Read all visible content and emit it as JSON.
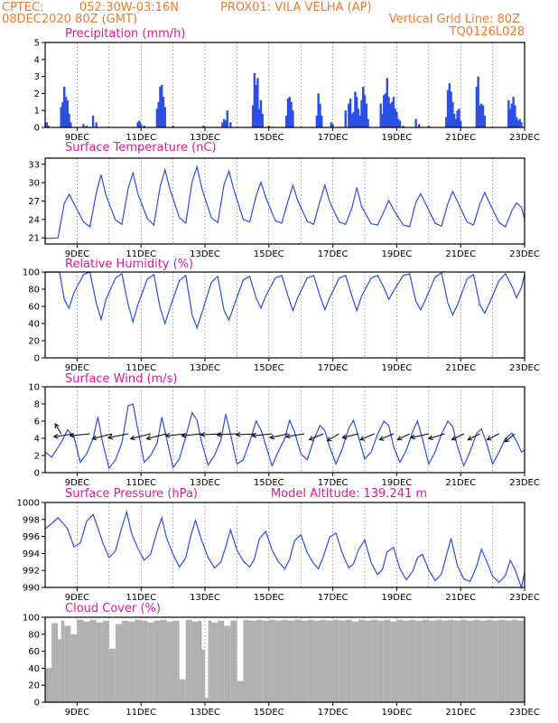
{
  "header": {
    "source": "CPTEC:",
    "coords": "052:30W-03:16N",
    "point": "PROX01: VILA VELHA (AP)",
    "run": "08DEC2020 80Z (GMT)",
    "grid_note": "Vertical Grid Line: 80Z",
    "model": "TQ0126L028"
  },
  "x_tick_labels": [
    "9DEC",
    "11DEC",
    "13DEC",
    "15DEC",
    "17DEC",
    "19DEC",
    "21DEC",
    "23DEC"
  ],
  "colors": {
    "series": "#2a4ee6",
    "cloud": "#b0b0b0",
    "title": "#e0189a",
    "header": "#f07a2a"
  },
  "chart_data": [
    {
      "type": "bar",
      "title": "Precipitation (mm/h)",
      "y_ticks": [
        "0",
        "1",
        "2",
        "3",
        "4",
        "5"
      ],
      "ylim": [
        0,
        5
      ],
      "x_range_days": [
        8.0,
        23.0
      ],
      "x": [
        8.05,
        8.1,
        8.5,
        8.55,
        8.6,
        8.65,
        8.7,
        8.75,
        8.8,
        9.2,
        9.3,
        9.5,
        9.6,
        10.9,
        10.95,
        11.0,
        11.1,
        11.5,
        11.55,
        11.6,
        11.65,
        11.7,
        11.75,
        12.0,
        12.95,
        13.55,
        13.6,
        13.65,
        13.7,
        13.8,
        14.5,
        14.55,
        14.6,
        14.65,
        14.7,
        14.75,
        14.8,
        15.0,
        15.55,
        15.6,
        15.65,
        15.7,
        15.75,
        16.5,
        16.55,
        16.6,
        16.65,
        16.95,
        17.0,
        17.4,
        17.5,
        17.55,
        17.6,
        17.65,
        17.7,
        17.75,
        17.8,
        17.85,
        17.9,
        17.95,
        18.0,
        18.05,
        18.1,
        18.5,
        18.55,
        18.6,
        18.65,
        18.7,
        18.75,
        18.8,
        18.85,
        18.9,
        18.95,
        19.0,
        19.05,
        19.1,
        19.2,
        19.6,
        19.7,
        20.0,
        20.55,
        20.6,
        20.65,
        20.7,
        20.75,
        20.8,
        20.85,
        20.9,
        20.95,
        21.0,
        21.5,
        21.55,
        21.6,
        21.65,
        21.7,
        21.75,
        22.5,
        22.55,
        22.6,
        22.65,
        22.7,
        22.75,
        22.8,
        22.85,
        22.9
      ],
      "values": [
        0.3,
        0.1,
        1.2,
        1.5,
        2.4,
        1.8,
        1.6,
        0.8,
        0.3,
        0.2,
        0.1,
        0.7,
        0.3,
        0.3,
        0.4,
        0.2,
        0.1,
        1.1,
        1.5,
        2.4,
        2.5,
        1.8,
        1.2,
        0.1,
        0.1,
        0.3,
        0.5,
        0.4,
        1.0,
        0.3,
        1.3,
        3.2,
        2.5,
        2.9,
        1.1,
        1.6,
        0.8,
        0.1,
        0.7,
        1.7,
        1.8,
        1.5,
        1.0,
        0.7,
        2.0,
        1.4,
        0.7,
        0.3,
        0.2,
        1.0,
        1.4,
        1.7,
        0.8,
        0.9,
        2.1,
        1.8,
        1.1,
        0.7,
        1.6,
        2.4,
        1.9,
        1.4,
        0.5,
        1.4,
        0.8,
        1.9,
        2.0,
        2.9,
        1.8,
        1.4,
        1.5,
        1.8,
        1.1,
        0.9,
        0.5,
        0.4,
        0.1,
        0.5,
        0.2,
        0.1,
        0.6,
        2.2,
        2.6,
        2.1,
        1.5,
        0.8,
        0.5,
        1.0,
        1.1,
        0.4,
        2.4,
        3.0,
        1.3,
        1.4,
        1.3,
        0.7,
        1.6,
        1.1,
        1.4,
        1.8,
        1.3,
        0.6,
        0.4,
        0.5,
        0.3
      ]
    },
    {
      "type": "line",
      "title": "Surface Temperature (nC)",
      "y_ticks": [
        "21",
        "24",
        "27",
        "30",
        "33"
      ],
      "ylim": [
        20,
        34
      ],
      "x_range_days": [
        8.0,
        23.0
      ],
      "x": [
        8.0,
        8.4,
        8.6,
        8.75,
        8.9,
        9.2,
        9.4,
        9.6,
        9.75,
        9.9,
        10.2,
        10.4,
        10.6,
        10.75,
        10.9,
        11.2,
        11.4,
        11.6,
        11.75,
        11.9,
        12.2,
        12.4,
        12.6,
        12.75,
        12.9,
        13.2,
        13.4,
        13.6,
        13.75,
        13.9,
        14.2,
        14.4,
        14.6,
        14.75,
        14.9,
        15.2,
        15.4,
        15.6,
        15.75,
        15.9,
        16.2,
        16.4,
        16.6,
        16.75,
        16.9,
        17.2,
        17.4,
        17.6,
        17.75,
        17.9,
        18.2,
        18.4,
        18.6,
        18.75,
        18.9,
        19.2,
        19.4,
        19.6,
        19.75,
        19.9,
        20.2,
        20.4,
        20.6,
        20.75,
        20.9,
        21.2,
        21.4,
        21.6,
        21.75,
        21.9,
        22.2,
        22.4,
        22.6,
        22.75,
        22.9,
        23.0
      ],
      "values": [
        20.9,
        21.0,
        26.6,
        28.1,
        26.6,
        23.6,
        22.8,
        28.3,
        31.3,
        28.0,
        23.9,
        23.2,
        29.1,
        31.6,
        28.2,
        24.1,
        23.1,
        29.4,
        32.1,
        29.0,
        24.3,
        23.4,
        30.2,
        32.6,
        29.1,
        24.3,
        23.5,
        29.7,
        31.9,
        28.9,
        24.0,
        23.6,
        27.8,
        30.1,
        27.6,
        23.8,
        23.4,
        27.0,
        29.6,
        27.1,
        23.7,
        23.2,
        27.0,
        29.6,
        26.9,
        23.6,
        23.2,
        25.9,
        29.2,
        26.1,
        23.3,
        23.1,
        25.3,
        27.1,
        25.6,
        23.1,
        22.8,
        26.8,
        28.2,
        26.6,
        23.4,
        22.9,
        26.6,
        28.6,
        26.9,
        23.6,
        23.1,
        26.5,
        28.4,
        26.7,
        23.5,
        22.8,
        25.4,
        26.7,
        26.0,
        24.1
      ]
    },
    {
      "type": "line",
      "title": "Relative Humidity (%)",
      "y_ticks": [
        "0",
        "20",
        "40",
        "60",
        "80",
        "100"
      ],
      "ylim": [
        0,
        100
      ],
      "x_range_days": [
        8.0,
        23.0
      ],
      "x": [
        8.0,
        8.45,
        8.6,
        8.75,
        8.9,
        9.2,
        9.4,
        9.6,
        9.75,
        9.9,
        10.2,
        10.4,
        10.6,
        10.75,
        10.9,
        11.2,
        11.4,
        11.6,
        11.75,
        11.9,
        12.2,
        12.4,
        12.6,
        12.75,
        12.9,
        13.2,
        13.4,
        13.6,
        13.75,
        13.9,
        14.2,
        14.4,
        14.6,
        14.75,
        14.9,
        15.2,
        15.4,
        15.6,
        15.75,
        15.9,
        16.2,
        16.4,
        16.6,
        16.75,
        16.9,
        17.2,
        17.4,
        17.6,
        17.75,
        17.9,
        18.2,
        18.4,
        18.6,
        18.75,
        18.9,
        19.2,
        19.4,
        19.6,
        19.75,
        19.9,
        20.2,
        20.4,
        20.6,
        20.75,
        20.9,
        21.2,
        21.4,
        21.6,
        21.75,
        21.9,
        22.2,
        22.4,
        22.6,
        22.75,
        22.9,
        23.0
      ],
      "values": [
        100,
        100,
        68,
        58,
        76,
        97,
        100,
        64,
        45,
        68,
        93,
        98,
        62,
        42,
        62,
        92,
        97,
        58,
        40,
        58,
        90,
        96,
        50,
        35,
        52,
        88,
        95,
        55,
        44,
        60,
        91,
        95,
        70,
        58,
        72,
        93,
        96,
        72,
        55,
        70,
        93,
        96,
        72,
        56,
        70,
        93,
        96,
        72,
        55,
        72,
        93,
        96,
        82,
        68,
        78,
        96,
        98,
        66,
        56,
        68,
        94,
        99,
        64,
        50,
        62,
        92,
        97,
        62,
        52,
        64,
        90,
        98,
        84,
        70,
        82,
        97
      ]
    },
    {
      "type": "line",
      "title": "Surface Wind (m/s)",
      "y_ticks": [
        "0",
        "2",
        "4",
        "6",
        "8",
        "10"
      ],
      "ylim": [
        0,
        10
      ],
      "x_range_days": [
        8.0,
        23.0
      ],
      "x": [
        8.0,
        8.2,
        8.5,
        8.7,
        8.9,
        9.1,
        9.3,
        9.5,
        9.65,
        9.8,
        10.0,
        10.2,
        10.4,
        10.6,
        10.75,
        10.9,
        11.1,
        11.3,
        11.5,
        11.65,
        11.8,
        12.0,
        12.2,
        12.4,
        12.6,
        12.75,
        12.9,
        13.1,
        13.3,
        13.5,
        13.65,
        13.8,
        14.0,
        14.2,
        14.4,
        14.6,
        14.75,
        14.9,
        15.1,
        15.3,
        15.5,
        15.65,
        15.8,
        16.0,
        16.2,
        16.4,
        16.6,
        16.75,
        16.9,
        17.1,
        17.3,
        17.5,
        17.65,
        17.8,
        18.0,
        18.2,
        18.4,
        18.6,
        18.75,
        18.9,
        19.1,
        19.3,
        19.5,
        19.65,
        19.8,
        20.0,
        20.2,
        20.4,
        20.6,
        20.75,
        20.9,
        21.1,
        21.3,
        21.5,
        21.65,
        21.8,
        22.0,
        22.2,
        22.4,
        22.6,
        22.75,
        22.9,
        23.0
      ],
      "values": [
        2.4,
        1.8,
        3.5,
        5.0,
        4.2,
        1.2,
        2.2,
        4.0,
        6.5,
        3.5,
        0.5,
        1.5,
        3.5,
        7.8,
        8.0,
        5.0,
        1.2,
        2.0,
        3.4,
        6.5,
        4.0,
        0.6,
        1.6,
        4.2,
        7.0,
        6.1,
        3.5,
        0.9,
        2.0,
        3.8,
        6.8,
        4.5,
        1.0,
        1.5,
        3.6,
        6.0,
        5.0,
        3.2,
        0.8,
        2.5,
        4.0,
        6.1,
        4.8,
        2.2,
        1.5,
        3.8,
        5.5,
        4.9,
        3.0,
        1.0,
        2.8,
        5.2,
        6.1,
        4.2,
        1.6,
        2.4,
        4.5,
        6.0,
        5.5,
        3.0,
        1.2,
        2.6,
        4.8,
        6.0,
        4.0,
        1.0,
        2.4,
        4.5,
        6.0,
        5.4,
        3.0,
        0.8,
        2.5,
        4.6,
        5.1,
        3.6,
        1.0,
        2.4,
        4.0,
        4.6,
        3.7,
        2.4,
        2.6
      ],
      "arrows_x": [
        8.5,
        8.9,
        9.4,
        10.1,
        10.6,
        11.3,
        11.8,
        12.4,
        12.9,
        13.5,
        14.0,
        14.6,
        15.1,
        15.6,
        16.1,
        16.7,
        17.2,
        17.8,
        18.3,
        18.9,
        19.4,
        20.0,
        20.5,
        21.1,
        21.6,
        22.2,
        22.7
      ],
      "arrows_u": [
        -0.3,
        -1.0,
        -1.0,
        -1.0,
        -1.0,
        -1.0,
        -1.0,
        -1.0,
        -1.0,
        -1.0,
        -1.0,
        -1.0,
        -1.0,
        -0.9,
        -0.9,
        -0.7,
        -0.6,
        -0.8,
        -0.7,
        -0.7,
        -0.6,
        -0.9,
        -0.8,
        -0.6,
        -0.6,
        -0.6,
        -0.5
      ],
      "arrows_v": [
        1.0,
        -0.3,
        -0.2,
        -0.5,
        -0.4,
        -0.5,
        -0.5,
        -0.2,
        -0.2,
        -0.1,
        -0.1,
        -0.1,
        -0.2,
        -0.4,
        -0.3,
        -0.6,
        -0.7,
        -0.4,
        -0.6,
        -0.6,
        -0.6,
        -0.4,
        -0.5,
        -0.6,
        -0.6,
        -0.6,
        -0.8
      ]
    },
    {
      "type": "line",
      "title": "Surface Pressure (hPa)",
      "annotation": "Model Altitude: 139.241 m",
      "y_ticks": [
        "990",
        "992",
        "994",
        "996",
        "998",
        "1000"
      ],
      "ylim": [
        990,
        1000
      ],
      "x_range_days": [
        8.0,
        23.0
      ],
      "x": [
        8.0,
        8.2,
        8.4,
        8.55,
        8.7,
        8.9,
        9.1,
        9.3,
        9.5,
        9.65,
        9.8,
        10.0,
        10.2,
        10.4,
        10.55,
        10.7,
        10.9,
        11.1,
        11.3,
        11.5,
        11.65,
        11.8,
        12.0,
        12.2,
        12.4,
        12.55,
        12.7,
        12.9,
        13.1,
        13.3,
        13.5,
        13.65,
        13.8,
        14.0,
        14.2,
        14.4,
        14.55,
        14.7,
        14.9,
        15.1,
        15.3,
        15.5,
        15.65,
        15.8,
        16.0,
        16.2,
        16.4,
        16.55,
        16.7,
        16.9,
        17.1,
        17.3,
        17.5,
        17.65,
        17.8,
        18.0,
        18.2,
        18.4,
        18.55,
        18.7,
        18.9,
        19.1,
        19.3,
        19.5,
        19.65,
        19.8,
        20.0,
        20.2,
        20.4,
        20.55,
        20.7,
        20.9,
        21.1,
        21.3,
        21.5,
        21.65,
        21.8,
        22.0,
        22.2,
        22.4,
        22.55,
        22.7,
        22.9,
        23.0
      ],
      "values": [
        996.9,
        997.5,
        998.2,
        997.6,
        996.9,
        994.8,
        995.2,
        997.8,
        998.6,
        997.0,
        995.3,
        993.5,
        994.3,
        997.1,
        998.9,
        996.4,
        994.6,
        993.2,
        993.9,
        996.6,
        998.2,
        995.8,
        993.9,
        992.4,
        993.5,
        996.0,
        997.9,
        995.5,
        993.5,
        992.3,
        993.0,
        994.8,
        996.8,
        994.4,
        993.1,
        992.4,
        993.4,
        995.7,
        996.6,
        994.4,
        993.0,
        992.2,
        993.3,
        995.5,
        996.2,
        994.1,
        992.8,
        992.2,
        993.6,
        995.9,
        996.4,
        994.0,
        992.3,
        992.8,
        994.4,
        995.6,
        992.9,
        991.5,
        992.1,
        994.2,
        994.7,
        992.2,
        990.9,
        991.9,
        993.5,
        993.9,
        992.1,
        990.8,
        991.6,
        993.7,
        995.8,
        992.5,
        991.0,
        990.7,
        992.5,
        994.5,
        993.2,
        991.3,
        990.6,
        991.4,
        993.2,
        992.1,
        990.0,
        991.8
      ]
    },
    {
      "type": "bar",
      "title": "Cloud Cover (%)",
      "y_ticks": [
        "0",
        "20",
        "40",
        "60",
        "80",
        "100"
      ],
      "ylim": [
        0,
        100
      ],
      "x_range_days": [
        8.0,
        23.0
      ],
      "x": [
        8.0,
        8.2,
        8.4,
        8.5,
        8.6,
        8.8,
        9.0,
        9.2,
        9.4,
        9.6,
        9.8,
        10.0,
        10.2,
        10.4,
        10.6,
        10.8,
        11.0,
        11.2,
        11.4,
        11.6,
        11.8,
        12.0,
        12.2,
        12.4,
        12.6,
        12.8,
        12.9,
        13.0,
        13.1,
        13.2,
        13.4,
        13.6,
        13.8,
        14.0,
        14.2,
        14.4,
        14.6,
        14.8,
        15.0,
        15.2,
        15.4,
        15.6,
        15.8,
        16.0,
        16.2,
        16.4,
        16.6,
        16.8,
        17.0,
        17.2,
        17.4,
        17.6,
        17.8,
        18.0,
        18.2,
        18.4,
        18.6,
        18.8,
        19.0,
        19.2,
        19.4,
        19.6,
        19.8,
        20.0,
        20.2,
        20.4,
        20.6,
        20.8,
        21.0,
        21.2,
        21.4,
        21.6,
        21.8,
        22.0,
        22.2,
        22.4,
        22.6,
        22.8,
        23.0
      ],
      "values": [
        40,
        93,
        74,
        96,
        90,
        80,
        97,
        95,
        97,
        94,
        96,
        63,
        92,
        96,
        95,
        97,
        96,
        94,
        96,
        97,
        95,
        96,
        27,
        97,
        95,
        96,
        62,
        5,
        96,
        94,
        96,
        90,
        96,
        25,
        97,
        96,
        97,
        96,
        97,
        96,
        97,
        96,
        97,
        96,
        97,
        96,
        97,
        96,
        97,
        96,
        97,
        95,
        97,
        96,
        97,
        96,
        97,
        95,
        97,
        96,
        97,
        96,
        97,
        96,
        97,
        96,
        97,
        96,
        97,
        96,
        97,
        96,
        97,
        96,
        97,
        96,
        97,
        96,
        97
      ]
    }
  ]
}
